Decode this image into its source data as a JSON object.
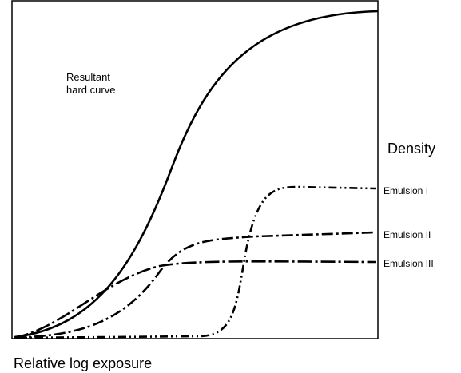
{
  "labels": {
    "hard_curve": [
      "Resultant",
      "hard curve"
    ],
    "y_axis": "Density",
    "x_axis": "Relative log exposure"
  },
  "curves": [
    {
      "label": "Emulsion I"
    },
    {
      "label": "Emulsion II"
    },
    {
      "label": "Emulsion III"
    }
  ]
}
